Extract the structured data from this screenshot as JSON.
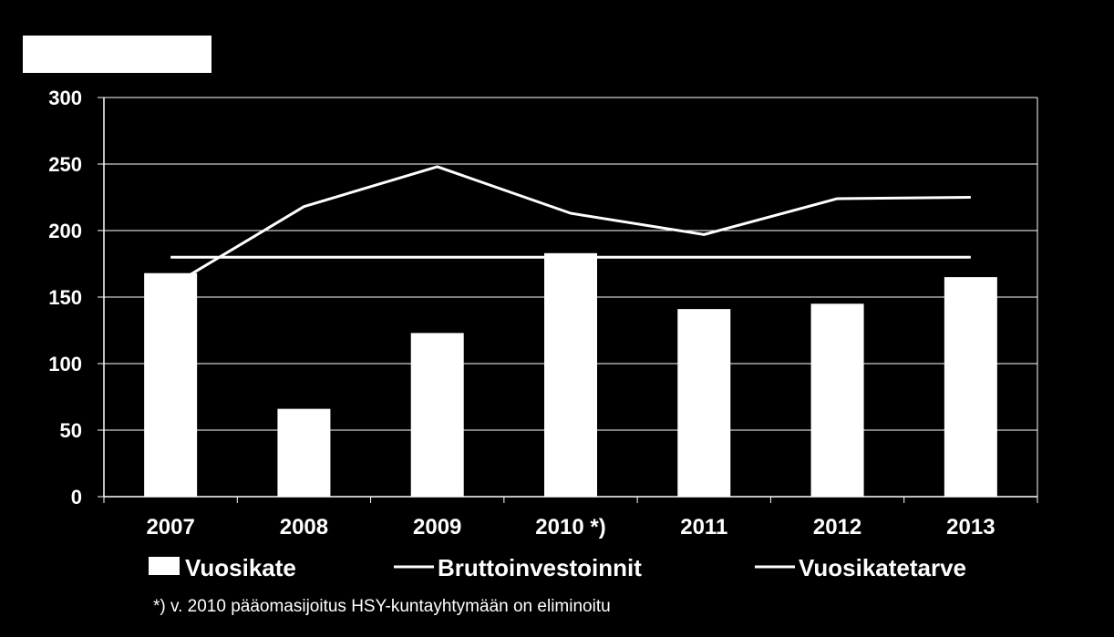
{
  "chart_data": {
    "type": "bar",
    "categories": [
      "2007",
      "2008",
      "2009",
      "2010 *)",
      "2011",
      "2012",
      "2013"
    ],
    "series": [
      {
        "name": "Vuosikate",
        "kind": "bar",
        "values": [
          168,
          66,
          123,
          183,
          141,
          145,
          165
        ]
      },
      {
        "name": "Bruttoinvestoinnit",
        "kind": "line",
        "values": [
          158,
          218,
          248,
          213,
          197,
          224,
          225
        ]
      },
      {
        "name": "Vuosikatetarve",
        "kind": "line",
        "values": [
          180,
          180,
          180,
          180,
          180,
          180,
          180
        ]
      }
    ],
    "yticks": [
      "0",
      "50",
      "100",
      "150",
      "200",
      "250",
      "300"
    ],
    "ylim": [
      0,
      300
    ],
    "grid": true,
    "legend_position": "bottom",
    "colors": {
      "background": "#000000",
      "bars": "#ffffff",
      "lines": "#ffffff",
      "grid": "#ffffff"
    },
    "footnote": "*) v. 2010 pääomasijoitus HSY-kuntayhtymään  on eliminoitu"
  }
}
